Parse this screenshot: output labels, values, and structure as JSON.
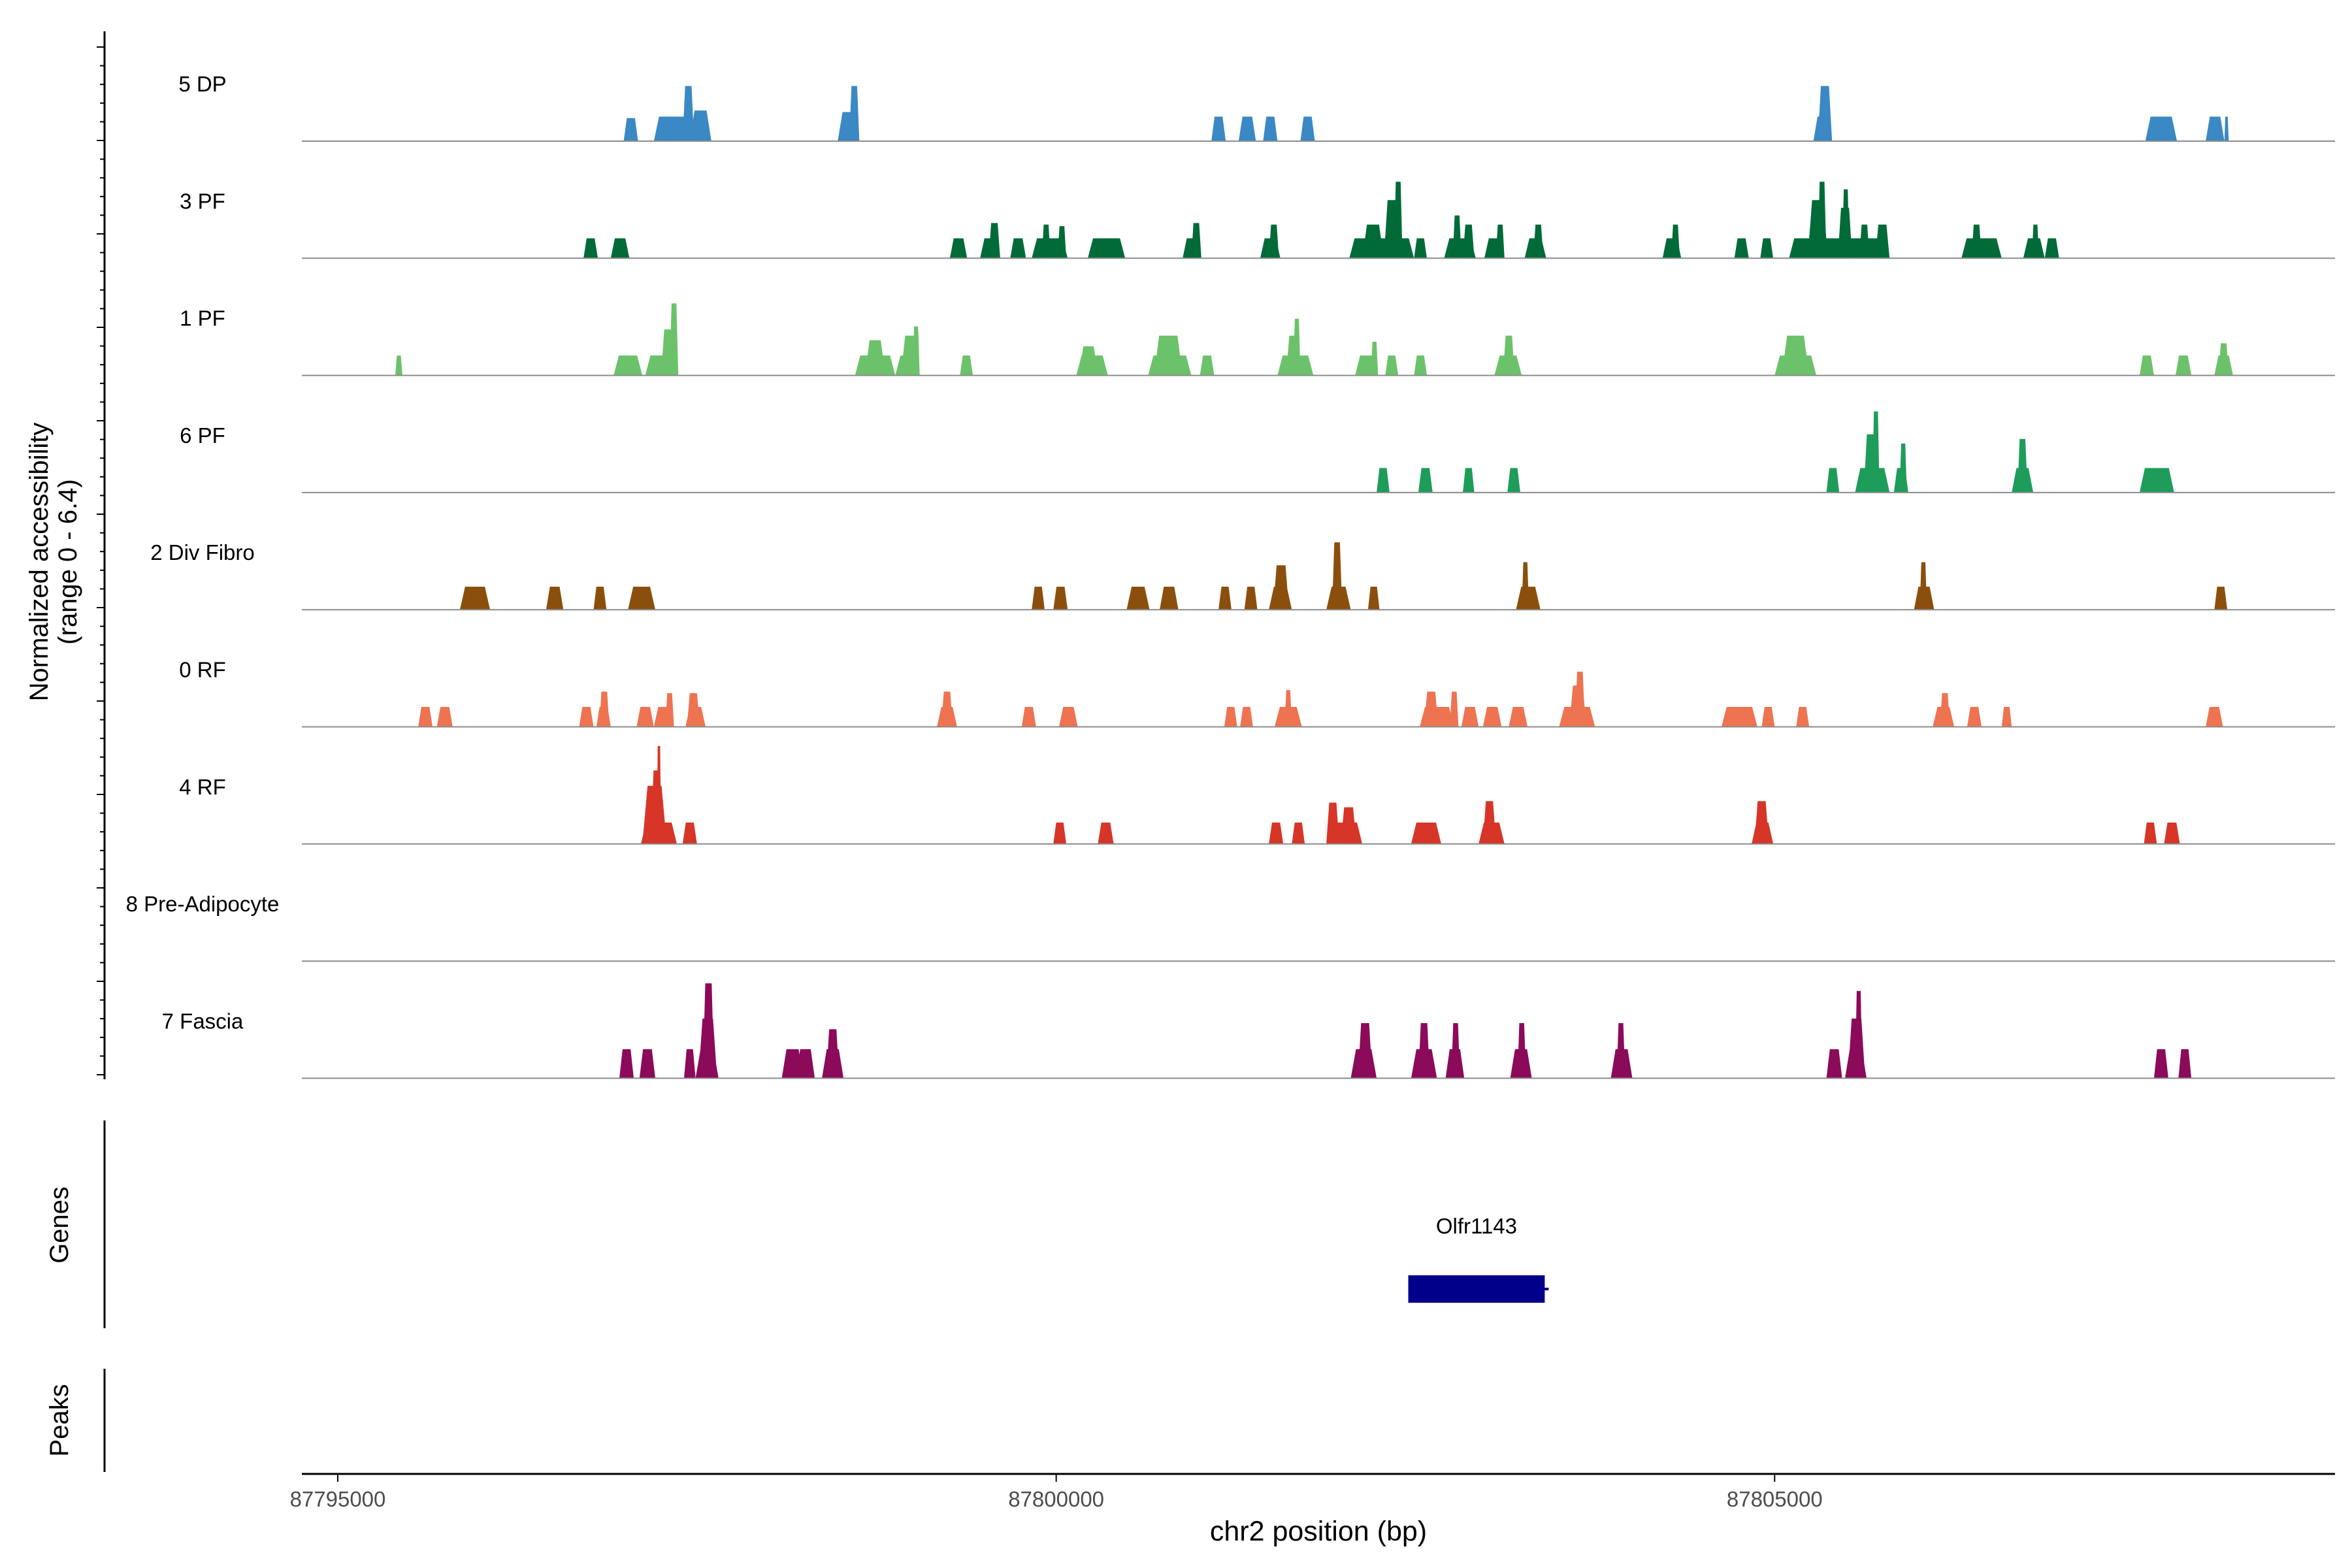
{
  "chart_data": {
    "type": "area",
    "subtype": "genome-coverage-track",
    "colors": {
      "5 DP": "#3a88c4",
      "3 PF": "#006b38",
      "1 PF": "#6cc26a",
      "6 PF": "#1e9c5a",
      "2 Div Fibro": "#8b4f0d",
      "0 RF": "#ee7350",
      "4 RF": "#d73527",
      "8 Pre-Adipocyte": "#c8c8c8",
      "7 Fascia": "#8b0a5a",
      "gene": "#00008b",
      "baseline": "#8c8c8c",
      "axis": "#000000",
      "tick_text": "#4d4d4d"
    },
    "y_axis_label_line1": "Normalized accessibility",
    "y_axis_label_line2": "(range 0 - 6.4)",
    "ylim": [
      0,
      6.4
    ],
    "xlabel": "chr2 position (bp)",
    "xlim": [
      87794750,
      87808900
    ],
    "x_ticks": [
      87795000,
      87800000,
      87805000
    ],
    "x_tick_labels": [
      "87795000",
      "87800000",
      "87805000"
    ],
    "genes_label": "Genes",
    "peaks_label": "Peaks",
    "genes": [
      {
        "name": "Olfr1143",
        "start": 87802450,
        "end": 87803400,
        "strand": "+"
      }
    ],
    "series": [
      {
        "name": "5 DP",
        "peaks": [
          [
            87796990,
            87797090,
            1.5
          ],
          [
            87797200,
            87797450,
            1.6
          ],
          [
            87797400,
            87797480,
            3.6
          ],
          [
            87797450,
            87797600,
            2.0
          ],
          [
            87798480,
            87798630,
            1.9
          ],
          [
            87798560,
            87798630,
            3.6
          ],
          [
            87801080,
            87801180,
            1.6
          ],
          [
            87801270,
            87801390,
            1.6
          ],
          [
            87801440,
            87801540,
            1.6
          ],
          [
            87801700,
            87801800,
            1.6
          ],
          [
            87805270,
            87805400,
            1.6
          ],
          [
            87805300,
            87805400,
            3.6
          ],
          [
            87807580,
            87807800,
            1.6
          ],
          [
            87808000,
            87808130,
            1.6
          ],
          [
            87808130,
            87808160,
            1.6
          ]
        ]
      },
      {
        "name": "3 PF",
        "peaks": [
          [
            87796710,
            87796810,
            1.3
          ],
          [
            87796900,
            87797030,
            1.3
          ],
          [
            87799260,
            87799380,
            1.3
          ],
          [
            87799470,
            87799610,
            1.3
          ],
          [
            87799530,
            87799610,
            2.3
          ],
          [
            87799680,
            87799790,
            1.3
          ],
          [
            87799830,
            87800080,
            1.3
          ],
          [
            87799900,
            87799960,
            2.2
          ],
          [
            87800010,
            87800070,
            2.1
          ],
          [
            87800220,
            87800480,
            1.3
          ],
          [
            87800880,
            87801010,
            1.3
          ],
          [
            87800940,
            87801010,
            2.3
          ],
          [
            87801420,
            87801560,
            1.3
          ],
          [
            87801480,
            87801550,
            2.2
          ],
          [
            87802040,
            87802490,
            1.3
          ],
          [
            87802130,
            87802280,
            2.2
          ],
          [
            87802280,
            87802400,
            3.8
          ],
          [
            87802350,
            87802410,
            5.0
          ],
          [
            87802490,
            87802580,
            1.3
          ],
          [
            87802700,
            87802920,
            1.3
          ],
          [
            87802760,
            87802820,
            2.8
          ],
          [
            87802830,
            87802910,
            2.2
          ],
          [
            87802980,
            87803120,
            1.3
          ],
          [
            87803060,
            87803120,
            2.2
          ],
          [
            87803260,
            87803410,
            1.3
          ],
          [
            87803320,
            87803390,
            2.2
          ],
          [
            87804220,
            87804350,
            1.3
          ],
          [
            87804280,
            87804340,
            2.2
          ],
          [
            87804720,
            87804820,
            1.3
          ],
          [
            87804900,
            87804990,
            1.3
          ],
          [
            87805100,
            87805800,
            1.3
          ],
          [
            87805230,
            87805370,
            3.8
          ],
          [
            87805300,
            87805360,
            5.0
          ],
          [
            87805440,
            87805540,
            3.3
          ],
          [
            87805470,
            87805520,
            4.5
          ],
          [
            87805590,
            87805660,
            2.2
          ],
          [
            87805700,
            87805800,
            2.2
          ],
          [
            87806300,
            87806580,
            1.3
          ],
          [
            87806370,
            87806440,
            2.2
          ],
          [
            87806730,
            87806880,
            1.3
          ],
          [
            87806790,
            87806840,
            2.2
          ],
          [
            87806880,
            87806980,
            1.3
          ]
        ]
      },
      {
        "name": "1 PF",
        "peaks": [
          [
            87795400,
            87795450,
            1.3
          ],
          [
            87796920,
            87797120,
            1.3
          ],
          [
            87797140,
            87797350,
            1.3
          ],
          [
            87797250,
            87797350,
            3.0
          ],
          [
            87797310,
            87797370,
            4.7
          ],
          [
            87798600,
            87798880,
            1.3
          ],
          [
            87798670,
            87798810,
            2.3
          ],
          [
            87798880,
            87799050,
            1.3
          ],
          [
            87798920,
            87799050,
            2.6
          ],
          [
            87799000,
            87799050,
            3.2
          ],
          [
            87799330,
            87799420,
            1.3
          ],
          [
            87800140,
            87800360,
            1.3
          ],
          [
            87800160,
            87800290,
            1.9
          ],
          [
            87800640,
            87800940,
            1.3
          ],
          [
            87800680,
            87800880,
            2.6
          ],
          [
            87801000,
            87801100,
            1.3
          ],
          [
            87801540,
            87801790,
            1.3
          ],
          [
            87801600,
            87801700,
            2.6
          ],
          [
            87801650,
            87801700,
            3.7
          ],
          [
            87802080,
            87802240,
            1.3
          ],
          [
            87802190,
            87802240,
            2.2
          ],
          [
            87802290,
            87802380,
            1.3
          ],
          [
            87802490,
            87802580,
            1.3
          ],
          [
            87803050,
            87803240,
            1.3
          ],
          [
            87803110,
            87803190,
            2.6
          ],
          [
            87805000,
            87805290,
            1.3
          ],
          [
            87805050,
            87805240,
            2.6
          ],
          [
            87807540,
            87807640,
            1.3
          ],
          [
            87807790,
            87807900,
            1.3
          ],
          [
            87808060,
            87808190,
            1.3
          ],
          [
            87808090,
            87808160,
            2.1
          ]
        ]
      },
      {
        "name": "6 PF",
        "peaks": [
          [
            87802230,
            87802320,
            1.6
          ],
          [
            87802520,
            87802620,
            1.6
          ],
          [
            87802830,
            87802910,
            1.6
          ],
          [
            87803140,
            87803230,
            1.6
          ],
          [
            87805360,
            87805450,
            1.6
          ],
          [
            87805560,
            87805800,
            1.6
          ],
          [
            87805620,
            87805720,
            3.8
          ],
          [
            87805680,
            87805730,
            5.3
          ],
          [
            87805830,
            87805930,
            1.6
          ],
          [
            87805870,
            87805920,
            3.2
          ],
          [
            87806650,
            87806800,
            1.6
          ],
          [
            87806690,
            87806760,
            3.5
          ],
          [
            87807540,
            87807780,
            1.6
          ]
        ]
      },
      {
        "name": "2 Div Fibro",
        "peaks": [
          [
            87795850,
            87796060,
            1.5
          ],
          [
            87796450,
            87796570,
            1.5
          ],
          [
            87796780,
            87796870,
            1.5
          ],
          [
            87797020,
            87797210,
            1.5
          ],
          [
            87799830,
            87799920,
            1.5
          ],
          [
            87799980,
            87800080,
            1.5
          ],
          [
            87800490,
            87800650,
            1.5
          ],
          [
            87800720,
            87800850,
            1.5
          ],
          [
            87801130,
            87801220,
            1.5
          ],
          [
            87801310,
            87801400,
            1.5
          ],
          [
            87801480,
            87801640,
            1.5
          ],
          [
            87801510,
            87801620,
            2.9
          ],
          [
            87801880,
            87802050,
            1.5
          ],
          [
            87801920,
            87801990,
            4.4
          ],
          [
            87802170,
            87802250,
            1.5
          ],
          [
            87803200,
            87803370,
            1.5
          ],
          [
            87803240,
            87803290,
            3.1
          ],
          [
            87805970,
            87806110,
            1.5
          ],
          [
            87806010,
            87806060,
            3.1
          ],
          [
            87808060,
            87808150,
            1.5
          ]
        ]
      },
      {
        "name": "0 RF",
        "peaks": [
          [
            87795560,
            87795660,
            1.3
          ],
          [
            87795690,
            87795800,
            1.3
          ],
          [
            87796680,
            87796780,
            1.3
          ],
          [
            87796800,
            87796900,
            1.3
          ],
          [
            87796820,
            87796890,
            2.3
          ],
          [
            87797080,
            87797200,
            1.3
          ],
          [
            87797200,
            87797340,
            1.3
          ],
          [
            87797280,
            87797340,
            2.2
          ],
          [
            87797420,
            87797560,
            1.3
          ],
          [
            87797430,
            87797520,
            2.2
          ],
          [
            87799170,
            87799310,
            1.3
          ],
          [
            87799200,
            87799280,
            2.3
          ],
          [
            87799760,
            87799860,
            1.3
          ],
          [
            87800020,
            87800150,
            1.3
          ],
          [
            87801170,
            87801260,
            1.3
          ],
          [
            87801280,
            87801370,
            1.3
          ],
          [
            87801520,
            87801710,
            1.3
          ],
          [
            87801590,
            87801640,
            2.4
          ],
          [
            87802530,
            87802770,
            1.3
          ],
          [
            87802560,
            87802660,
            2.3
          ],
          [
            87802740,
            87802800,
            2.3
          ],
          [
            87802820,
            87802940,
            1.3
          ],
          [
            87802970,
            87803100,
            1.3
          ],
          [
            87803150,
            87803280,
            1.3
          ],
          [
            87803500,
            87803750,
            1.3
          ],
          [
            87803570,
            87803690,
            2.7
          ],
          [
            87803610,
            87803680,
            3.6
          ],
          [
            87804630,
            87804880,
            1.3
          ],
          [
            87804910,
            87805000,
            1.3
          ],
          [
            87805150,
            87805240,
            1.3
          ],
          [
            87806100,
            87806250,
            1.3
          ],
          [
            87806150,
            87806220,
            2.2
          ],
          [
            87806340,
            87806440,
            1.3
          ],
          [
            87806580,
            87806650,
            1.3
          ],
          [
            87808000,
            87808120,
            1.3
          ]
        ]
      },
      {
        "name": "4 RF",
        "peaks": [
          [
            87797110,
            87797360,
            1.4
          ],
          [
            87797120,
            87797290,
            3.8
          ],
          [
            87797180,
            87797260,
            4.8
          ],
          [
            87797220,
            87797250,
            6.4
          ],
          [
            87797400,
            87797500,
            1.4
          ],
          [
            87799980,
            87800070,
            1.4
          ],
          [
            87800290,
            87800400,
            1.4
          ],
          [
            87801480,
            87801580,
            1.4
          ],
          [
            87801640,
            87801730,
            1.4
          ],
          [
            87801880,
            87802130,
            1.4
          ],
          [
            87801880,
            87801970,
            2.7
          ],
          [
            87801980,
            87802090,
            2.4
          ],
          [
            87802470,
            87802680,
            1.4
          ],
          [
            87802940,
            87803120,
            1.4
          ],
          [
            87802970,
            87803060,
            2.8
          ],
          [
            87804840,
            87804990,
            1.4
          ],
          [
            87804860,
            87804960,
            2.8
          ],
          [
            87807570,
            87807660,
            1.4
          ],
          [
            87807710,
            87807820,
            1.4
          ]
        ]
      },
      {
        "name": "8 Pre-Adipocyte",
        "peaks": []
      },
      {
        "name": "7 Fascia",
        "peaks": [
          [
            87796960,
            87797060,
            1.9
          ],
          [
            87797100,
            87797210,
            1.9
          ],
          [
            87797410,
            87797490,
            1.9
          ],
          [
            87797490,
            87797650,
            1.9
          ],
          [
            87797510,
            87797640,
            3.9
          ],
          [
            87797540,
            87797620,
            6.2
          ],
          [
            87798090,
            87798240,
            1.9
          ],
          [
            87798190,
            87798320,
            1.9
          ],
          [
            87798370,
            87798520,
            1.9
          ],
          [
            87798400,
            87798490,
            3.2
          ],
          [
            87802050,
            87802230,
            1.9
          ],
          [
            87802100,
            87802200,
            3.6
          ],
          [
            87802470,
            87802650,
            1.9
          ],
          [
            87802520,
            87802600,
            3.6
          ],
          [
            87802710,
            87802840,
            1.9
          ],
          [
            87802750,
            87802810,
            3.6
          ],
          [
            87803160,
            87803310,
            1.9
          ],
          [
            87803210,
            87803270,
            3.6
          ],
          [
            87803860,
            87804010,
            1.9
          ],
          [
            87803900,
            87803960,
            3.6
          ],
          [
            87805360,
            87805470,
            1.9
          ],
          [
            87805490,
            87805640,
            1.9
          ],
          [
            87805510,
            87805630,
            3.9
          ],
          [
            87805560,
            87805610,
            5.7
          ],
          [
            87807640,
            87807740,
            1.9
          ],
          [
            87807810,
            87807900,
            1.9
          ]
        ]
      }
    ]
  }
}
